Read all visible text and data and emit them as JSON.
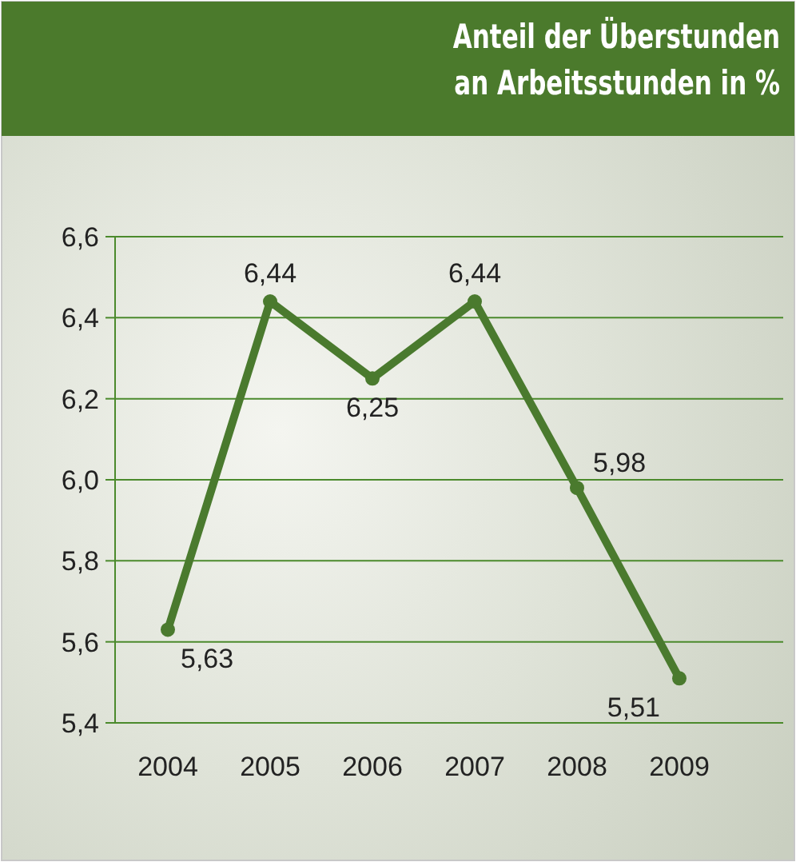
{
  "chart_data": {
    "type": "line",
    "title": "Anteil  der Überstunden\nan Arbeitsstunden in %",
    "categories": [
      "2004",
      "2005",
      "2006",
      "2007",
      "2008",
      "2009"
    ],
    "series": [
      {
        "color": "#4a7a2e",
        "values": [
          5.63,
          6.44,
          6.25,
          6.44,
          5.98,
          5.51
        ],
        "value_labels": [
          "5,63",
          "6,44",
          "6,25",
          "6,44",
          "5,98",
          "5,51"
        ]
      }
    ],
    "ylim": [
      5.4,
      6.6
    ],
    "yticks": [
      {
        "value": 5.4,
        "label": "5,4"
      },
      {
        "value": 5.6,
        "label": "5,6"
      },
      {
        "value": 5.8,
        "label": "5,8"
      },
      {
        "value": 6.0,
        "label": "6,0"
      },
      {
        "value": 6.2,
        "label": "6,2"
      },
      {
        "value": 6.4,
        "label": "6,4"
      },
      {
        "value": 6.6,
        "label": "6,6"
      }
    ],
    "grid": "y",
    "marker": "circle",
    "line_style": "solid"
  }
}
